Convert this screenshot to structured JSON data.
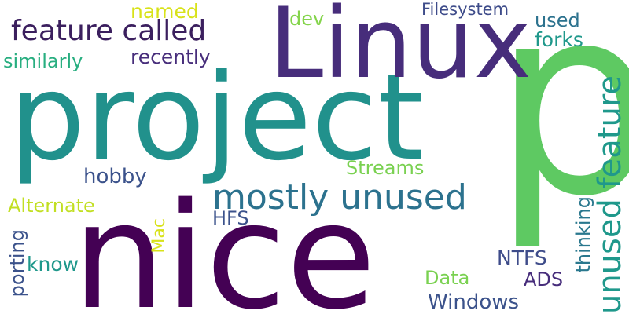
{
  "words": {
    "p": {
      "text": "p",
      "color": "#5ec962"
    },
    "nice": {
      "text": "nice",
      "color": "#440154"
    },
    "project": {
      "text": "project",
      "color": "#21918c"
    },
    "linux": {
      "text": "Linux",
      "color": "#472d7b"
    },
    "mostly_unused": {
      "text": "mostly unused",
      "color": "#2c728e"
    },
    "feature_called": {
      "text": "feature called",
      "color": "#3b1f5e"
    },
    "unused_feature": {
      "text": "unused feature",
      "color": "#1f988b"
    },
    "windows": {
      "text": "Windows",
      "color": "#3b528b"
    },
    "recently": {
      "text": "recently",
      "color": "#472d7b"
    },
    "similarly": {
      "text": "similarly",
      "color": "#28ae80"
    },
    "named": {
      "text": "named",
      "color": "#d8e219"
    },
    "dev": {
      "text": "dev",
      "color": "#84d44b"
    },
    "filesystem": {
      "text": "Filesystem",
      "color": "#3e4c8a"
    },
    "used": {
      "text": "used",
      "color": "#2c728e"
    },
    "forks": {
      "text": "forks",
      "color": "#1f988b"
    },
    "hobby": {
      "text": "hobby",
      "color": "#3b528b"
    },
    "streams": {
      "text": "Streams",
      "color": "#7ad151"
    },
    "alternate": {
      "text": "Alternate",
      "color": "#c2df23"
    },
    "hfs": {
      "text": "HFS",
      "color": "#3b528b"
    },
    "mac": {
      "text": "Mac",
      "color": "#d8e219"
    },
    "thinking": {
      "text": "thinking",
      "color": "#2a788e"
    },
    "porting": {
      "text": "porting",
      "color": "#3b528b"
    },
    "know": {
      "text": "know",
      "color": "#1f988b"
    },
    "ntfs": {
      "text": "NTFS",
      "color": "#3e4c8a"
    },
    "data": {
      "text": "Data",
      "color": "#7ad151"
    },
    "ads": {
      "text": "ADS",
      "color": "#472d7b"
    }
  }
}
